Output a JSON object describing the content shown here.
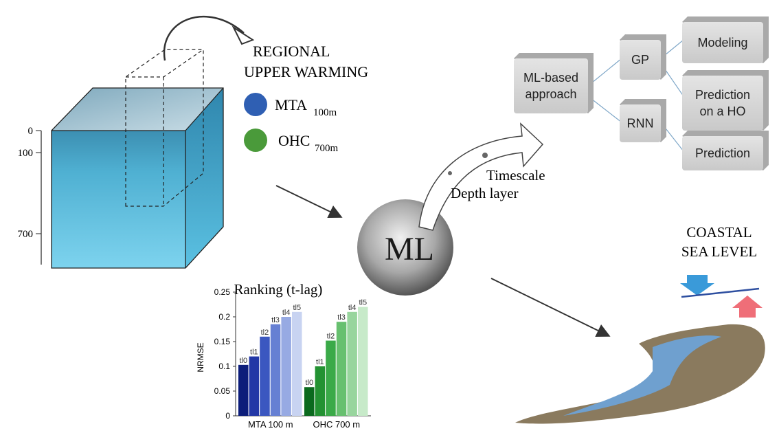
{
  "depth_scale": {
    "labels": [
      "0",
      "100",
      "700"
    ]
  },
  "legend": {
    "title_lines": [
      "REGIONAL",
      "UPPER WARMING"
    ],
    "items": [
      {
        "label": "MTA",
        "subscript": "100m",
        "color": "#2f5fb3"
      },
      {
        "label": "OHC",
        "subscript": "700m",
        "color": "#4a9a3a"
      }
    ]
  },
  "ml": {
    "label": "ML",
    "arrow_labels": [
      "Timescale",
      "Depth layer"
    ]
  },
  "approach": {
    "root_lines": [
      "ML-based",
      "approach"
    ],
    "methods": [
      "GP",
      "RNN"
    ],
    "outputs": [
      [
        "Modeling"
      ],
      [
        "Prediction",
        "on a HO"
      ],
      [
        "Prediction"
      ]
    ]
  },
  "coastal": {
    "title_lines": [
      "COASTAL",
      "SEA LEVEL"
    ]
  },
  "chart_data": {
    "type": "bar",
    "title": "Ranking (t-lag)",
    "y_label": "NRMSE",
    "categories": [
      "MTA 100 m",
      "OHC 700 m"
    ],
    "ylim": [
      0,
      0.25
    ],
    "yticks": [
      0,
      0.05,
      0.1,
      0.15,
      0.2,
      0.25
    ],
    "series": [
      {
        "name": "tl0",
        "colors": [
          "#0c1d7a",
          "#0b6a1e"
        ],
        "values": [
          0.103,
          0.058
        ]
      },
      {
        "name": "tl1",
        "colors": [
          "#2237a6",
          "#239232"
        ],
        "values": [
          0.12,
          0.1
        ]
      },
      {
        "name": "tl2",
        "colors": [
          "#3b57c0",
          "#3aaa48"
        ],
        "values": [
          0.16,
          0.152
        ]
      },
      {
        "name": "tl3",
        "colors": [
          "#6680d3",
          "#67c06f"
        ],
        "values": [
          0.185,
          0.19
        ]
      },
      {
        "name": "tl4",
        "colors": [
          "#97aae3",
          "#98d59d"
        ],
        "values": [
          0.2,
          0.21
        ]
      },
      {
        "name": "tl5",
        "colors": [
          "#c8d3f1",
          "#c7eac9"
        ],
        "values": [
          0.21,
          0.22
        ]
      }
    ]
  }
}
